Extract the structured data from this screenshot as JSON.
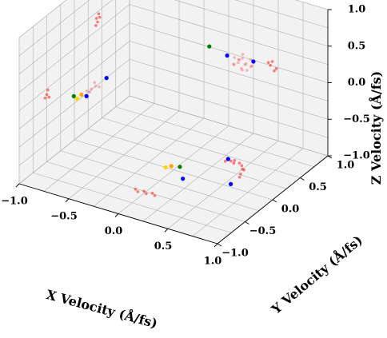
{
  "chart_data": {
    "type": "scatter",
    "projection": "3d",
    "xlabel": "X Velocity (Å/fs)",
    "ylabel": "Y Velocity (Å/fs)",
    "zlabel": "Z Velocity (Å/fs)",
    "xlim": [
      -1.0,
      1.0
    ],
    "ylim": [
      -1.0,
      1.0
    ],
    "zlim": [
      -1.0,
      1.0
    ],
    "x_ticks": [
      "−1.0",
      "−0.5",
      "0.0",
      "0.5",
      "1.0"
    ],
    "y_ticks": [
      "−1.0",
      "−0.5",
      "0.0",
      "0.5",
      "1.0"
    ],
    "z_ticks": [
      "−1.0",
      "−0.5",
      "0.0",
      "0.5",
      "1.0"
    ],
    "grid": true,
    "pane_color": "#f2f2f2",
    "series": [
      {
        "color": "#ff0000",
        "alpha": 0.25,
        "points": [
          [
            0.38,
            0.42,
            0.44
          ],
          [
            0.43,
            0.4,
            0.4
          ],
          [
            0.47,
            0.45,
            0.36
          ],
          [
            0.51,
            0.4,
            0.42
          ],
          [
            0.4,
            0.48,
            0.38
          ],
          [
            0.45,
            0.37,
            0.47
          ],
          [
            0.52,
            0.47,
            0.34
          ],
          [
            0.36,
            0.44,
            0.33
          ],
          [
            0.49,
            0.35,
            0.38
          ],
          [
            0.42,
            0.5,
            0.45
          ],
          [
            0.55,
            0.43,
            0.39
          ],
          [
            0.46,
            0.42,
            0.3
          ],
          [
            0.4,
            0.38,
            0.37
          ],
          [
            0.5,
            0.5,
            0.41
          ],
          [
            0.44,
            0.46,
            0.43
          ],
          [
            0.53,
            0.38,
            0.35
          ],
          [
            -0.55,
            -0.5,
            0.18
          ],
          [
            -0.52,
            -0.48,
            0.22
          ],
          [
            -0.58,
            -0.53,
            0.16
          ],
          [
            -0.5,
            -0.45,
            0.2
          ],
          [
            -0.54,
            -0.46,
            0.25
          ],
          [
            -0.56,
            -0.51,
            0.14
          ]
        ]
      },
      {
        "color": "#ff0000",
        "alpha": 0.5,
        "points": [
          [
            0.3,
            0.4,
            -1.0
          ],
          [
            0.34,
            0.43,
            -1.0
          ],
          [
            0.38,
            0.41,
            -1.0
          ],
          [
            0.42,
            0.44,
            -1.0
          ],
          [
            0.36,
            0.46,
            -1.0
          ],
          [
            0.46,
            0.41,
            -1.0
          ],
          [
            -0.06,
            -0.54,
            -1.0
          ],
          [
            -0.02,
            -0.5,
            -1.0
          ],
          [
            0.02,
            -0.53,
            -1.0
          ],
          [
            0.06,
            -0.49,
            -1.0
          ],
          [
            -0.1,
            -0.51,
            -1.0
          ],
          [
            0.1,
            -0.52,
            -1.0
          ],
          [
            -1.0,
            0.4,
            0.42
          ],
          [
            -1.0,
            0.44,
            0.46
          ],
          [
            -1.0,
            0.42,
            0.36
          ],
          [
            -1.0,
            0.46,
            0.4
          ],
          [
            -1.0,
            0.39,
            0.33
          ],
          [
            -1.0,
            -0.5,
            -0.08
          ],
          [
            -1.0,
            -0.46,
            -0.14
          ],
          [
            -1.0,
            -0.53,
            -0.11
          ],
          [
            -1.0,
            -0.48,
            -0.03
          ],
          [
            0.42,
            1.0,
            0.0
          ],
          [
            0.44,
            1.0,
            0.06
          ],
          [
            0.46,
            1.0,
            -0.06
          ],
          [
            0.4,
            1.0,
            0.03
          ],
          [
            0.48,
            1.0,
            -0.02
          ],
          [
            1.0,
            -0.58,
            -0.3
          ],
          [
            1.0,
            -0.55,
            -0.25
          ],
          [
            1.0,
            -0.6,
            -0.33
          ],
          [
            1.0,
            -0.52,
            -0.28
          ]
        ]
      },
      {
        "color": "#0000ff",
        "alpha": 1.0,
        "points": [
          [
            0.33,
            0.38,
            0.47
          ],
          [
            0.55,
            0.46,
            0.43
          ],
          [
            -0.42,
            -0.46,
            0.36
          ],
          [
            -0.56,
            -0.57,
            0.12
          ],
          [
            0.3,
            0.45,
            -1.0
          ],
          [
            0.55,
            0.05,
            -1.0
          ],
          [
            0.15,
            -0.1,
            -1.0
          ]
        ]
      },
      {
        "color": "#008000",
        "alpha": 1.0,
        "points": [
          [
            0.15,
            0.38,
            0.52
          ],
          [
            -0.7,
            -0.55,
            0.05
          ],
          [
            0.02,
            0.08,
            -1.0
          ]
        ]
      },
      {
        "color": "#ffa500",
        "alpha": 1.0,
        "points": [
          [
            -0.64,
            -0.52,
            0.08
          ],
          [
            -0.05,
            0.05,
            -1.0
          ]
        ]
      },
      {
        "color": "#ffd700",
        "alpha": 1.0,
        "points": [
          [
            -0.66,
            -0.56,
            0.04
          ],
          [
            -0.08,
            0.0,
            -1.0
          ]
        ]
      }
    ]
  }
}
